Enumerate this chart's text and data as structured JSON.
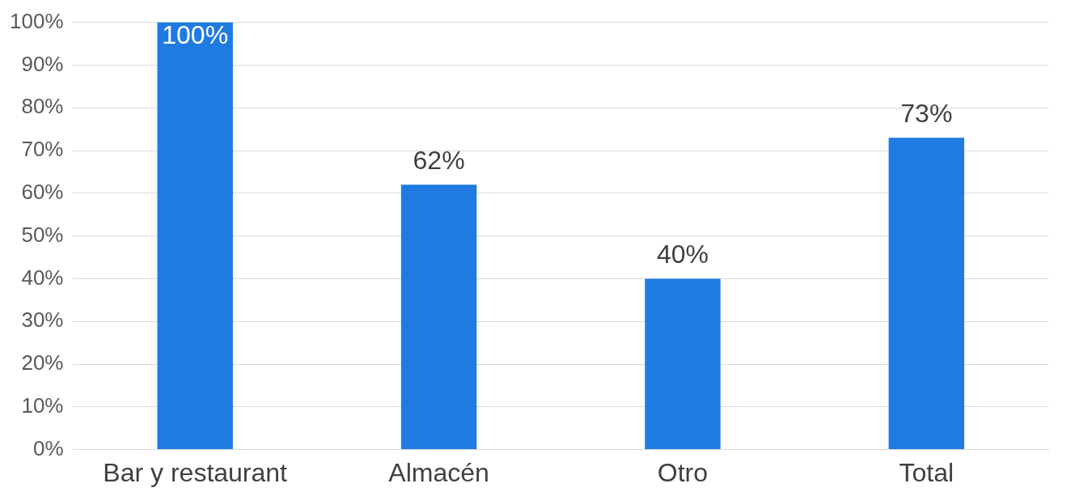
{
  "chart_data": {
    "type": "bar",
    "categories": [
      "Bar y restaurant",
      "Almacén",
      "Otro",
      "Total"
    ],
    "values": [
      100,
      62,
      40,
      73
    ],
    "color": "#1f7be2",
    "value_labels": [
      "100%",
      "62%",
      "40%",
      "73%"
    ],
    "ylim": [
      0,
      100
    ],
    "yticks": [
      {
        "value": 0,
        "label": "0%"
      },
      {
        "value": 10,
        "label": "10%"
      },
      {
        "value": 20,
        "label": "20%"
      },
      {
        "value": 30,
        "label": "30%"
      },
      {
        "value": 40,
        "label": "40%"
      },
      {
        "value": 50,
        "label": "50%"
      },
      {
        "value": 60,
        "label": "60%"
      },
      {
        "value": 70,
        "label": "70%"
      },
      {
        "value": 80,
        "label": "80%"
      },
      {
        "value": 90,
        "label": "90%"
      },
      {
        "value": 100,
        "label": "100%"
      }
    ],
    "grid": "y"
  }
}
